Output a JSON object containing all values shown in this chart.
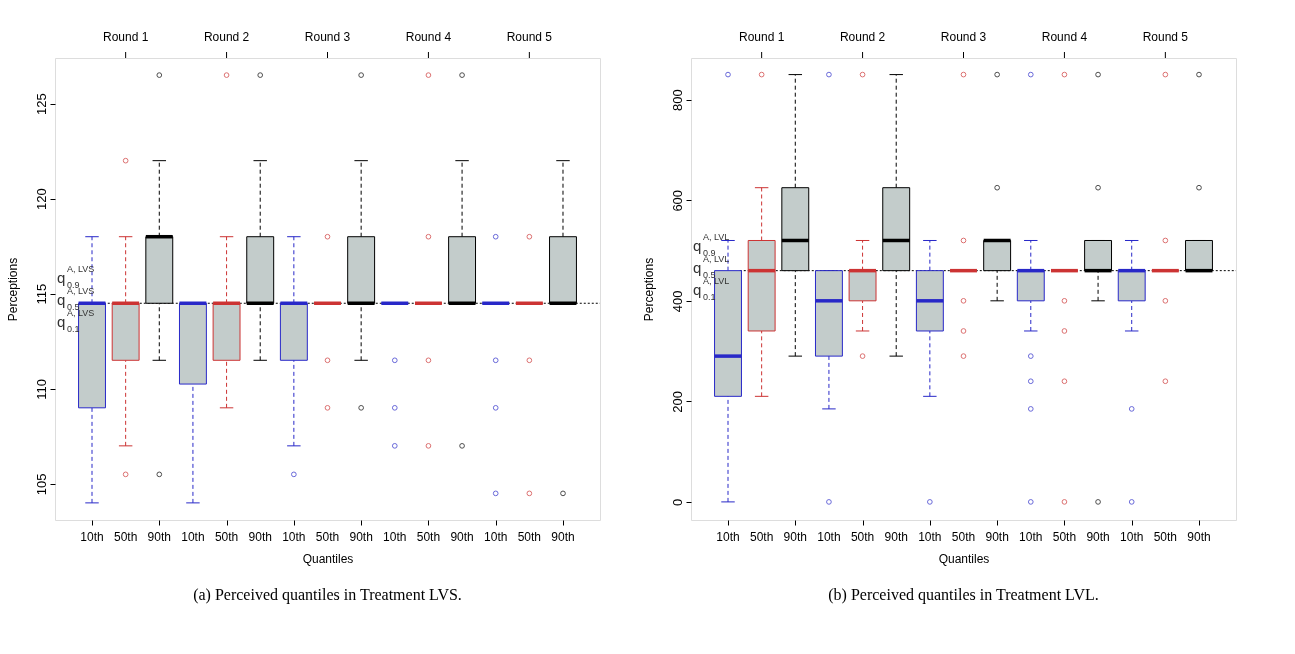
{
  "chart_data": [
    {
      "type": "box",
      "title": "(a) Perceived quantiles in Treatment LVS.",
      "xlabel": "Quantiles",
      "ylabel": "Perceptions",
      "categories": [
        "10th",
        "50th",
        "90th",
        "10th",
        "50th",
        "90th",
        "10th",
        "50th",
        "90th",
        "10th",
        "50th",
        "90th",
        "10th",
        "50th",
        "90th"
      ],
      "colors": [
        "#2828c8",
        "#cc3333",
        "#000000",
        "#2828c8",
        "#cc3333",
        "#000000",
        "#2828c8",
        "#cc3333",
        "#000000",
        "#2828c8",
        "#cc3333",
        "#000000",
        "#2828c8",
        "#cc3333",
        "#000000"
      ],
      "boxes": [
        {
          "low": 104,
          "q1": 109,
          "median": 114.5,
          "q3": 114.5,
          "high": 118
        },
        {
          "low": 107,
          "q1": 111.5,
          "median": 114.5,
          "q3": 114.5,
          "high": 118,
          "outliers": [
            122,
            105.5
          ]
        },
        {
          "low": 111.5,
          "q1": 114.5,
          "median": 118,
          "q3": 118,
          "high": 122,
          "outliers": [
            126.5,
            105.5
          ]
        },
        {
          "low": 104,
          "q1": 110.25,
          "median": 114.5,
          "q3": 114.5,
          "high": 114.5
        },
        {
          "low": 109,
          "q1": 111.5,
          "median": 114.5,
          "q3": 114.5,
          "high": 118,
          "outliers": [
            126.5
          ]
        },
        {
          "low": 111.5,
          "q1": 114.5,
          "median": 114.5,
          "q3": 118,
          "high": 122,
          "outliers": [
            126.5
          ]
        },
        {
          "low": 107,
          "q1": 111.5,
          "median": 114.5,
          "q3": 114.5,
          "high": 118,
          "outliers": [
            105.5
          ]
        },
        {
          "low": 114.5,
          "q1": 114.5,
          "median": 114.5,
          "q3": 114.5,
          "high": 114.5,
          "outliers": [
            118,
            111.5,
            109
          ]
        },
        {
          "low": 111.5,
          "q1": 114.5,
          "median": 114.5,
          "q3": 118,
          "high": 122,
          "outliers": [
            126.5,
            109
          ]
        },
        {
          "low": 114.5,
          "q1": 114.5,
          "median": 114.5,
          "q3": 114.5,
          "high": 114.5,
          "outliers": [
            111.5,
            109,
            107
          ]
        },
        {
          "low": 114.5,
          "q1": 114.5,
          "median": 114.5,
          "q3": 114.5,
          "high": 114.5,
          "outliers": [
            126.5,
            118,
            111.5,
            107
          ]
        },
        {
          "low": 114.5,
          "q1": 114.5,
          "median": 114.5,
          "q3": 118,
          "high": 122,
          "outliers": [
            126.5,
            107
          ]
        },
        {
          "low": 114.5,
          "q1": 114.5,
          "median": 114.5,
          "q3": 114.5,
          "high": 114.5,
          "outliers": [
            118,
            111.5,
            109,
            104.5
          ]
        },
        {
          "low": 114.5,
          "q1": 114.5,
          "median": 114.5,
          "q3": 114.5,
          "high": 114.5,
          "outliers": [
            118,
            111.5,
            104.5
          ]
        },
        {
          "low": 114.5,
          "q1": 114.5,
          "median": 114.5,
          "q3": 118,
          "high": 122,
          "outliers": [
            104.5
          ]
        }
      ],
      "ylim": [
        103.1,
        127.4
      ],
      "yticks": [
        105,
        110,
        115,
        120,
        125
      ],
      "ref_lines": [
        {
          "axis": "y",
          "value": 114.5,
          "color": "#000000",
          "line_style": "dotted"
        }
      ],
      "annotations": [
        "Round 1",
        "Round 2",
        "Round 3",
        "Round 4",
        "Round 5",
        {
          "text": "q$^{A, LVS}$$_{0.9}$",
          "y": 114.5
        },
        {
          "text": "q$^{A, LVS}$$_{0.5}$",
          "y": 114.5
        },
        {
          "text": "q$^{A, LVS}$$_{0.1}$",
          "y": 114.5
        }
      ],
      "grid": false
    },
    {
      "type": "box",
      "title": "(b) Perceived quantiles in Treatment LVL.",
      "xlabel": "Quantiles",
      "ylabel": "Perceptions",
      "categories": [
        "10th",
        "50th",
        "90th",
        "10th",
        "50th",
        "90th",
        "10th",
        "50th",
        "90th",
        "10th",
        "50th",
        "90th",
        "10th",
        "50th",
        "90th"
      ],
      "colors": [
        "#2828c8",
        "#cc3333",
        "#000000",
        "#2828c8",
        "#cc3333",
        "#000000",
        "#2828c8",
        "#cc3333",
        "#000000",
        "#2828c8",
        "#cc3333",
        "#000000",
        "#2828c8",
        "#cc3333",
        "#000000"
      ],
      "boxes": [
        {
          "low": 0,
          "q1": 210,
          "median": 290,
          "q3": 460,
          "high": 520,
          "outliers": [
            850
          ]
        },
        {
          "low": 210,
          "q1": 340,
          "median": 460,
          "q3": 520,
          "high": 625,
          "outliers": [
            850
          ]
        },
        {
          "low": 290,
          "q1": 460,
          "median": 520,
          "q3": 625,
          "high": 850
        },
        {
          "low": 185,
          "q1": 290,
          "median": 400,
          "q3": 460,
          "high": 460,
          "outliers": [
            850,
            0
          ]
        },
        {
          "low": 340,
          "q1": 400,
          "median": 460,
          "q3": 460,
          "high": 520,
          "outliers": [
            850,
            290
          ]
        },
        {
          "low": 290,
          "q1": 460,
          "median": 520,
          "q3": 625,
          "high": 850
        },
        {
          "low": 210,
          "q1": 340,
          "median": 400,
          "q3": 460,
          "high": 520,
          "outliers": [
            0
          ]
        },
        {
          "low": 460,
          "q1": 460,
          "median": 460,
          "q3": 460,
          "high": 460,
          "outliers": [
            850,
            520,
            400,
            340,
            290
          ]
        },
        {
          "low": 400,
          "q1": 460,
          "median": 520,
          "q3": 520,
          "high": 520,
          "outliers": [
            850,
            625
          ]
        },
        {
          "low": 340,
          "q1": 400,
          "median": 460,
          "q3": 460,
          "high": 520,
          "outliers": [
            850,
            290,
            240,
            185,
            0
          ]
        },
        {
          "low": 460,
          "q1": 460,
          "median": 460,
          "q3": 460,
          "high": 460,
          "outliers": [
            850,
            400,
            340,
            240,
            0
          ]
        },
        {
          "low": 400,
          "q1": 460,
          "median": 460,
          "q3": 520,
          "high": 520,
          "outliers": [
            850,
            625,
            0
          ]
        },
        {
          "low": 340,
          "q1": 400,
          "median": 460,
          "q3": 460,
          "high": 520,
          "outliers": [
            185,
            0
          ]
        },
        {
          "low": 460,
          "q1": 460,
          "median": 460,
          "q3": 460,
          "high": 460,
          "outliers": [
            850,
            520,
            400,
            240
          ]
        },
        {
          "low": 460,
          "q1": 460,
          "median": 460,
          "q3": 520,
          "high": 520,
          "outliers": [
            850,
            625
          ]
        }
      ],
      "ylim": [
        -36,
        883
      ],
      "yticks": [
        0,
        200,
        400,
        600,
        800
      ],
      "ref_lines": [
        {
          "axis": "y",
          "value": 460,
          "color": "#000000",
          "line_style": "dotted"
        }
      ],
      "annotations": [
        "Round 1",
        "Round 2",
        "Round 3",
        "Round 4",
        "Round 5",
        {
          "text": "q$^{A, LVL}$$_{0.9}$",
          "y": 460
        },
        {
          "text": "q$^{A, LVL}$$_{0.5}$",
          "y": 460
        },
        {
          "text": "q$^{A, LVL}$$_{0.1}$",
          "y": 460
        }
      ],
      "grid": false
    }
  ]
}
